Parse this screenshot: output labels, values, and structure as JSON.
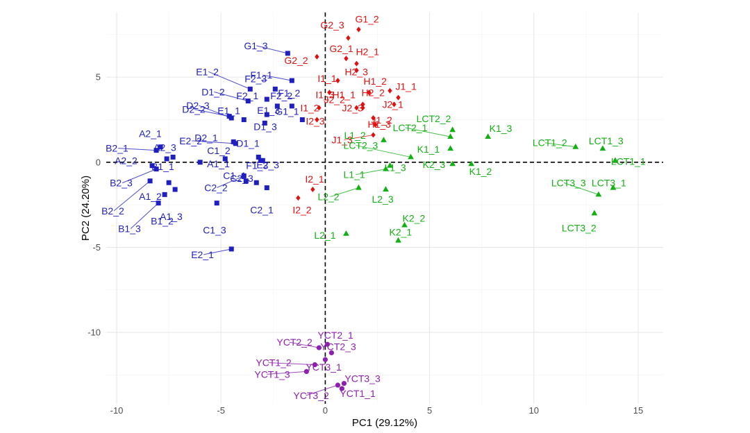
{
  "chart_data": {
    "type": "scatter",
    "title": "",
    "xlabel": "PC1 (29.12%)",
    "ylabel": "PC2 (24.20%)",
    "xlim": [
      -10.5,
      16.2
    ],
    "ylim": [
      -14.2,
      8.8
    ],
    "xticks": [
      -10,
      -5,
      0,
      5,
      10,
      15
    ],
    "yticks": [
      -10,
      -5,
      0,
      5
    ],
    "grid": true,
    "reference_lines": {
      "x": 0,
      "y": 0
    },
    "groups": [
      {
        "color": "#1f1fbf",
        "marker": "square",
        "points": [
          {
            "label": "A1_1",
            "x": -6.0,
            "y": 0.0
          },
          {
            "label": "A1_2",
            "x": -7.5,
            "y": -1.2
          },
          {
            "label": "A1_3",
            "x": -7.2,
            "y": -1.6
          },
          {
            "label": "A2_1",
            "x": -7.9,
            "y": 0.9
          },
          {
            "label": "A2_2",
            "x": -8.3,
            "y": -0.2
          },
          {
            "label": "A2_3",
            "x": -7.3,
            "y": 0.3
          },
          {
            "label": "B1_1",
            "x": -7.6,
            "y": 0.2
          },
          {
            "label": "B1_2",
            "x": -7.7,
            "y": -1.9
          },
          {
            "label": "B1_3",
            "x": -8.0,
            "y": -2.4
          },
          {
            "label": "B2_1",
            "x": -8.1,
            "y": 0.7
          },
          {
            "label": "B2_2",
            "x": -8.4,
            "y": -1.1
          },
          {
            "label": "B2_3",
            "x": -8.1,
            "y": -0.4
          },
          {
            "label": "C1_1",
            "x": -3.8,
            "y": -1.1
          },
          {
            "label": "C1_2",
            "x": -4.8,
            "y": 0.2
          },
          {
            "label": "C1_3",
            "x": -5.2,
            "y": -2.4
          },
          {
            "label": "C2_1",
            "x": -2.8,
            "y": -1.5
          },
          {
            "label": "C2_2",
            "x": -3.9,
            "y": -0.8
          },
          {
            "label": "C2_3",
            "x": -3.3,
            "y": -1.2
          },
          {
            "label": "D1_1",
            "x": -3.2,
            "y": 0.3
          },
          {
            "label": "D1_2",
            "x": -3.7,
            "y": 3.6
          },
          {
            "label": "D1_3",
            "x": -2.9,
            "y": 2.3
          },
          {
            "label": "D2_1",
            "x": -4.4,
            "y": 1.2
          },
          {
            "label": "D2_2",
            "x": -4.6,
            "y": 2.7
          },
          {
            "label": "D2_3",
            "x": -4.5,
            "y": 2.6
          },
          {
            "label": "E1_1",
            "x": -3.9,
            "y": 2.5
          },
          {
            "label": "E1_2",
            "x": -3.6,
            "y": 4.3
          },
          {
            "label": "E1_3",
            "x": -2.8,
            "y": 2.8
          },
          {
            "label": "E2_1",
            "x": -4.5,
            "y": -5.1
          },
          {
            "label": "E2_2",
            "x": -4.3,
            "y": 1.1
          },
          {
            "label": "E2_3",
            "x": -3.1,
            "y": 0.1
          },
          {
            "label": "F1_1",
            "x": -1.6,
            "y": 4.8
          },
          {
            "label": "F1_2",
            "x": -1.6,
            "y": 3.3
          },
          {
            "label": "F1_3",
            "x": -3.0,
            "y": 0.1
          },
          {
            "label": "F2_1",
            "x": -2.8,
            "y": 3.7
          },
          {
            "label": "F2_2",
            "x": -2.3,
            "y": 3.3
          },
          {
            "label": "F2_3",
            "x": -2.4,
            "y": 4.3
          },
          {
            "label": "G1_1",
            "x": -1.1,
            "y": 2.5
          },
          {
            "label": "G1_3",
            "x": -1.8,
            "y": 6.4
          }
        ]
      },
      {
        "color": "#e01010",
        "marker": "diamond",
        "points": [
          {
            "label": "G1_2",
            "x": 1.6,
            "y": 7.8
          },
          {
            "label": "G2_1",
            "x": 1.0,
            "y": 6.1
          },
          {
            "label": "G2_2",
            "x": -0.4,
            "y": 6.2
          },
          {
            "label": "G2_3",
            "x": 1.1,
            "y": 7.3
          },
          {
            "label": "H1_1",
            "x": 2.1,
            "y": 4.1
          },
          {
            "label": "H1_2",
            "x": 3.1,
            "y": 4.2
          },
          {
            "label": "H1_3",
            "x": 2.3,
            "y": 2.6
          },
          {
            "label": "H2_1",
            "x": 1.5,
            "y": 5.8
          },
          {
            "label": "H2_2",
            "x": 1.8,
            "y": 3.4
          },
          {
            "label": "H2_3",
            "x": 1.5,
            "y": 5.4
          },
          {
            "label": "I1_1",
            "x": 0.6,
            "y": 4.8
          },
          {
            "label": "I1_2",
            "x": -0.3,
            "y": 3.2
          },
          {
            "label": "I1_3",
            "x": 0.2,
            "y": 4.1
          },
          {
            "label": "I2_1",
            "x": -0.6,
            "y": -1.6
          },
          {
            "label": "I2_2",
            "x": -1.3,
            "y": -2.1
          },
          {
            "label": "I2_3",
            "x": -0.4,
            "y": 2.5
          },
          {
            "label": "J1_1",
            "x": 3.5,
            "y": 3.8
          },
          {
            "label": "J1_2",
            "x": 2.4,
            "y": 2.2
          },
          {
            "label": "J1_3",
            "x": 2.3,
            "y": 1.6
          },
          {
            "label": "J2_1",
            "x": 3.3,
            "y": 3.4
          },
          {
            "label": "J2_2",
            "x": 1.5,
            "y": 3.2
          },
          {
            "label": "J2_3",
            "x": 1.8,
            "y": 3.2
          }
        ]
      },
      {
        "color": "#13b013",
        "marker": "triangle",
        "points": [
          {
            "label": "K1_1",
            "x": 6.0,
            "y": 0.8
          },
          {
            "label": "K1_2",
            "x": 7.0,
            "y": -0.1
          },
          {
            "label": "K1_3",
            "x": 7.8,
            "y": 1.5
          },
          {
            "label": "K2_1",
            "x": 3.5,
            "y": -4.6
          },
          {
            "label": "K2_2",
            "x": 3.8,
            "y": -3.7
          },
          {
            "label": "K2_3",
            "x": 6.1,
            "y": -0.1
          },
          {
            "label": "L1_1",
            "x": 2.9,
            "y": -0.4
          },
          {
            "label": "L1_2",
            "x": 2.8,
            "y": 1.3
          },
          {
            "label": "L1_3",
            "x": 3.1,
            "y": -0.2
          },
          {
            "label": "L2_1",
            "x": 1.0,
            "y": -4.2
          },
          {
            "label": "L2_2",
            "x": 1.6,
            "y": -1.5
          },
          {
            "label": "L2_3",
            "x": 2.9,
            "y": -1.6
          },
          {
            "label": "LCT1_1",
            "x": 13.9,
            "y": 0.1
          },
          {
            "label": "LCT1_2",
            "x": 12.0,
            "y": 0.9
          },
          {
            "label": "LCT1_3",
            "x": 13.3,
            "y": 0.8
          },
          {
            "label": "LCT2_1",
            "x": 6.0,
            "y": 1.5
          },
          {
            "label": "LCT2_2",
            "x": 6.1,
            "y": 1.9
          },
          {
            "label": "LCT2_3",
            "x": 4.1,
            "y": 0.3
          },
          {
            "label": "LCT3_1",
            "x": 13.8,
            "y": -1.5
          },
          {
            "label": "LCT3_2",
            "x": 12.9,
            "y": -3.0
          },
          {
            "label": "LCT3_3",
            "x": 13.1,
            "y": -1.9
          }
        ]
      },
      {
        "color": "#8e1fb0",
        "marker": "circle",
        "points": [
          {
            "label": "YCT1_1",
            "x": 0.8,
            "y": -13.3
          },
          {
            "label": "YCT1_2",
            "x": -0.5,
            "y": -11.9
          },
          {
            "label": "YCT1_3",
            "x": -0.9,
            "y": -12.3
          },
          {
            "label": "YCT2_1",
            "x": 0.1,
            "y": -10.7
          },
          {
            "label": "YCT2_2",
            "x": -0.3,
            "y": -10.9
          },
          {
            "label": "YCT2_3",
            "x": 0.3,
            "y": -11.2
          },
          {
            "label": "YCT3_1",
            "x": 0.0,
            "y": -11.6
          },
          {
            "label": "YCT3_2",
            "x": 0.6,
            "y": -13.1
          },
          {
            "label": "YCT3_3",
            "x": 0.9,
            "y": -13.0
          }
        ]
      }
    ]
  }
}
